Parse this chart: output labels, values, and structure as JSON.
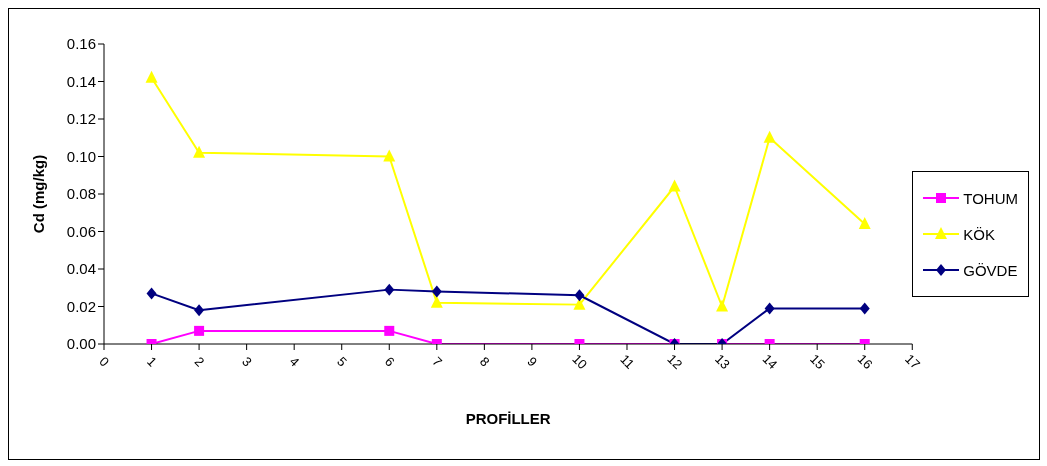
{
  "chart_data": {
    "type": "line",
    "xlabel": "PROFİLLER",
    "ylabel": "Cd  (mg/kg)",
    "x": [
      1,
      2,
      6,
      7,
      10,
      12,
      13,
      14,
      16
    ],
    "series": [
      {
        "name": "TOHUM",
        "color": "#ff00ff",
        "marker": "square",
        "values": [
          0,
          0.007,
          0.007,
          0,
          0,
          0,
          0,
          0,
          0
        ]
      },
      {
        "name": "KÖK",
        "color": "#ffff00",
        "marker": "triangle",
        "values": [
          0.142,
          0.102,
          0.1,
          0.022,
          0.021,
          0.084,
          0.02,
          0.11,
          0.064
        ]
      },
      {
        "name": "GÖVDE",
        "color": "#000080",
        "marker": "diamond",
        "values": [
          0.027,
          0.018,
          0.029,
          0.028,
          0.026,
          0,
          0,
          0.019,
          0.019
        ]
      }
    ],
    "xlim": [
      0,
      17
    ],
    "xticks": [
      0,
      1,
      2,
      3,
      4,
      5,
      6,
      7,
      8,
      9,
      10,
      11,
      12,
      13,
      14,
      15,
      16,
      17
    ],
    "ylim": [
      0,
      0.16
    ],
    "yticks": [
      {
        "value": 0,
        "label": "0.00"
      },
      {
        "value": 0.02,
        "label": "0.02"
      },
      {
        "value": 0.04,
        "label": "0.04"
      },
      {
        "value": 0.06,
        "label": "0.06"
      },
      {
        "value": 0.08,
        "label": "0.08"
      },
      {
        "value": 0.1,
        "label": "0.10"
      },
      {
        "value": 0.12,
        "label": "0.12"
      },
      {
        "value": 0.14,
        "label": "0.14"
      },
      {
        "value": 0.16,
        "label": "0.16"
      }
    ],
    "grid": false,
    "legend": "right",
    "line_style": "solid"
  }
}
